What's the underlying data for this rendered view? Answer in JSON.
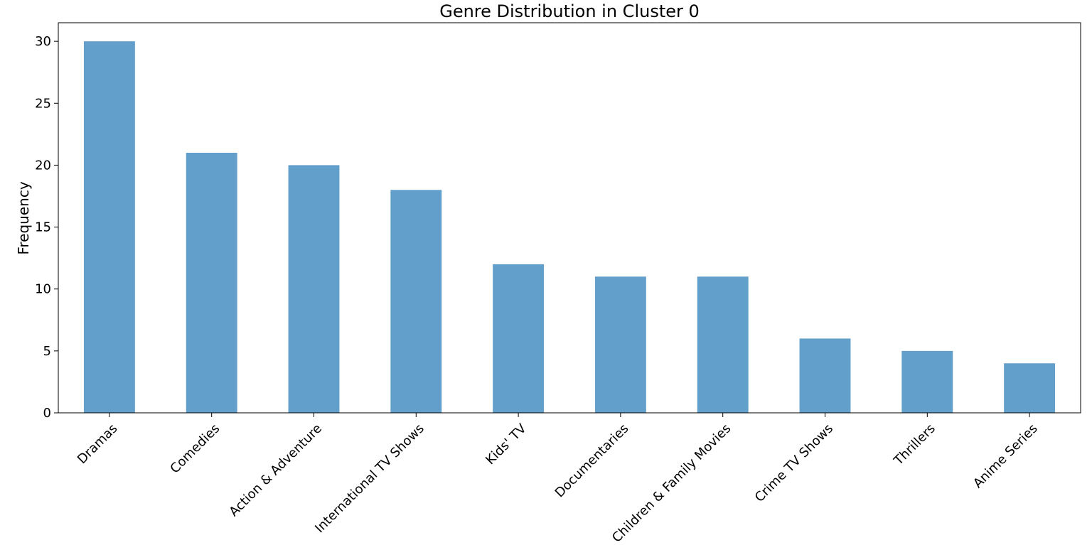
{
  "chart_data": {
    "type": "bar",
    "title": "Genre Distribution in Cluster 0",
    "xlabel": "",
    "ylabel": "Frequency",
    "categories": [
      "Dramas",
      "Comedies",
      "Action & Adventure",
      "International TV Shows",
      "Kids' TV",
      "Documentaries",
      "Children & Family Movies",
      "Crime TV Shows",
      "Thrillers",
      "Anime Series"
    ],
    "values": [
      30,
      21,
      20,
      18,
      12,
      11,
      11,
      6,
      5,
      4
    ],
    "ylim": [
      0,
      31.5
    ],
    "yticks": [
      0,
      5,
      10,
      15,
      20,
      25,
      30
    ],
    "bar_color": "#629fca",
    "grid": false,
    "legend": "none"
  }
}
